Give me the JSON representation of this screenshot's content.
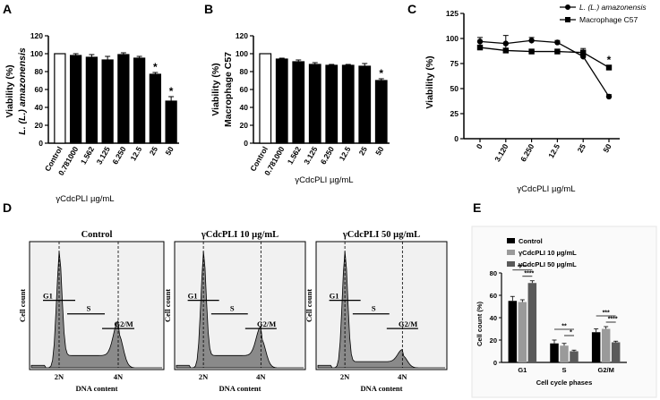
{
  "colors": {
    "black": "#000000",
    "gray_fill": "#8a8a8a",
    "panel_bg": "#f1f1f1",
    "e_gray": "#9a9a9a",
    "e_dark": "#5a5a5a"
  },
  "panels": {
    "a": "A",
    "b": "B",
    "c": "C",
    "d": "D",
    "e": "E"
  },
  "chart_data": [
    {
      "id": "A",
      "type": "bar",
      "ylabel_line1": "Viability (%)",
      "ylabel_line2": "L. (L.) amazonensis",
      "xlabel": "γCdcPLI µg/mL",
      "categories": [
        "Control",
        "0.781000",
        "1.562",
        "3.125",
        "6.250",
        "12.5",
        "25",
        "50"
      ],
      "values": [
        100,
        98,
        96,
        93,
        99,
        95,
        77,
        47
      ],
      "errors": [
        0,
        2,
        3,
        4,
        2,
        2,
        2,
        5
      ],
      "significance": [
        "",
        "",
        "",
        "",
        "",
        "",
        "*",
        "*"
      ],
      "ylim": [
        0,
        120
      ],
      "yticks": [
        0,
        20,
        40,
        60,
        80,
        100,
        120
      ]
    },
    {
      "id": "B",
      "type": "bar",
      "ylabel_line1": "Viability (%)",
      "ylabel_line2": "Macrophage C57",
      "xlabel": "γCdcPLI µg/mL",
      "categories": [
        "Control",
        "0.781000",
        "1.562",
        "3.125",
        "6.250",
        "12.5",
        "25",
        "50"
      ],
      "values": [
        100,
        94,
        91,
        88,
        87,
        87,
        86,
        70
      ],
      "errors": [
        0,
        1,
        2,
        2,
        1,
        1,
        3,
        2
      ],
      "significance": [
        "",
        "",
        "",
        "",
        "",
        "",
        "",
        "*"
      ],
      "ylim": [
        0,
        120
      ],
      "yticks": [
        0,
        20,
        40,
        60,
        80,
        100,
        120
      ]
    },
    {
      "id": "C",
      "type": "line",
      "ylabel": "Viability (%)",
      "xlabel": "γCdcPLI µg/mL",
      "categories": [
        "0",
        "3.120",
        "6.250",
        "12.5",
        "25",
        "50"
      ],
      "series": [
        {
          "name": "L. (L.) amazonensis",
          "marker": "circle",
          "values": [
            97,
            95,
            98,
            96,
            82,
            42
          ],
          "errors": [
            4,
            8,
            3,
            2,
            3,
            2
          ]
        },
        {
          "name": "Macrophage C57",
          "marker": "square",
          "values": [
            91,
            88,
            87,
            87,
            86,
            71
          ],
          "errors": [
            2,
            2,
            1,
            1,
            4,
            2
          ]
        }
      ],
      "significance_label": "*",
      "ylim": [
        0,
        125
      ],
      "yticks": [
        0,
        25,
        50,
        75,
        100,
        125
      ]
    },
    {
      "id": "D",
      "type": "histogram",
      "ylabel": "Cell count",
      "xlabel": "DNA content",
      "x_markers": [
        "2N",
        "4N"
      ],
      "gates": [
        "G1",
        "S",
        "G2/M"
      ],
      "histograms": [
        {
          "title": "Control",
          "g1_height": 0.85,
          "g2_height": 0.28,
          "s_level": 0.1
        },
        {
          "title": "γCdcPLI 10 µg/mL",
          "g1_height": 0.85,
          "g2_height": 0.24,
          "s_level": 0.1
        },
        {
          "title": "γCdcPLI 50 µg/mL",
          "g1_height": 0.9,
          "g2_height": 0.1,
          "s_level": 0.05
        }
      ]
    },
    {
      "id": "E",
      "type": "bar",
      "ylabel": "Cell count (%)",
      "xlabel": "Cell cycle phases",
      "categories": [
        "G1",
        "S",
        "G2/M"
      ],
      "series": [
        {
          "name": "Control",
          "values": [
            55,
            17,
            27
          ],
          "errors": [
            4,
            3,
            3
          ]
        },
        {
          "name": "γCdcPLI 10 µg/mL",
          "values": [
            54,
            15,
            30
          ],
          "errors": [
            2,
            2,
            2
          ]
        },
        {
          "name": "γCdcPLI 50 µg/mL",
          "values": [
            71,
            10,
            18
          ],
          "errors": [
            2,
            1,
            1
          ]
        }
      ],
      "significance": {
        "G1": [
          "****",
          "****"
        ],
        "S": [
          "**",
          "*"
        ],
        "G2/M": [
          "***",
          "****"
        ]
      },
      "ylim": [
        0,
        80
      ],
      "yticks": [
        0,
        20,
        40,
        60,
        80
      ]
    }
  ]
}
